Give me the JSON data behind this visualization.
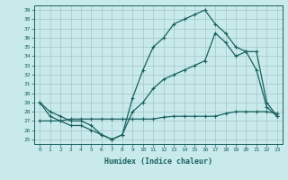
{
  "xlabel": "Humidex (Indice chaleur)",
  "bg_color": "#c8eaea",
  "grid_color": "#a8cccc",
  "line_color": "#1a6060",
  "xlim": [
    -0.5,
    23.5
  ],
  "ylim": [
    24.5,
    39.5
  ],
  "xticks": [
    0,
    1,
    2,
    3,
    4,
    5,
    6,
    7,
    8,
    9,
    10,
    11,
    12,
    13,
    14,
    15,
    16,
    17,
    18,
    19,
    20,
    21,
    22,
    23
  ],
  "yticks": [
    25,
    26,
    27,
    28,
    29,
    30,
    31,
    32,
    33,
    34,
    35,
    36,
    37,
    38,
    39
  ],
  "line1_x": [
    0,
    1,
    2,
    3,
    4,
    5,
    6,
    7,
    8,
    9,
    10,
    11,
    12,
    13,
    14,
    15,
    16,
    17,
    18,
    19,
    20,
    21,
    22,
    23
  ],
  "line1_y": [
    29.0,
    28.0,
    27.5,
    27.0,
    27.0,
    26.5,
    25.5,
    25.0,
    25.5,
    29.5,
    32.5,
    35.0,
    36.0,
    37.5,
    38.0,
    38.5,
    39.0,
    37.5,
    36.5,
    35.0,
    34.5,
    32.5,
    28.5,
    27.5
  ],
  "line2_x": [
    0,
    1,
    2,
    3,
    4,
    5,
    6,
    7,
    8,
    9,
    10,
    11,
    12,
    13,
    14,
    15,
    16,
    17,
    18,
    19,
    20,
    21,
    22,
    23
  ],
  "line2_y": [
    29.0,
    27.5,
    27.0,
    26.5,
    26.5,
    26.0,
    25.5,
    25.0,
    25.5,
    28.0,
    29.0,
    30.5,
    31.5,
    32.0,
    32.5,
    33.0,
    33.5,
    36.5,
    35.5,
    34.0,
    34.5,
    34.5,
    29.0,
    27.5
  ],
  "line3_x": [
    0,
    1,
    2,
    3,
    4,
    5,
    6,
    7,
    8,
    9,
    10,
    11,
    12,
    13,
    14,
    15,
    16,
    17,
    18,
    19,
    20,
    21,
    22,
    23
  ],
  "line3_y": [
    27.0,
    27.0,
    27.0,
    27.2,
    27.2,
    27.2,
    27.2,
    27.2,
    27.2,
    27.2,
    27.2,
    27.2,
    27.4,
    27.5,
    27.5,
    27.5,
    27.5,
    27.5,
    27.8,
    28.0,
    28.0,
    28.0,
    28.0,
    27.8
  ]
}
